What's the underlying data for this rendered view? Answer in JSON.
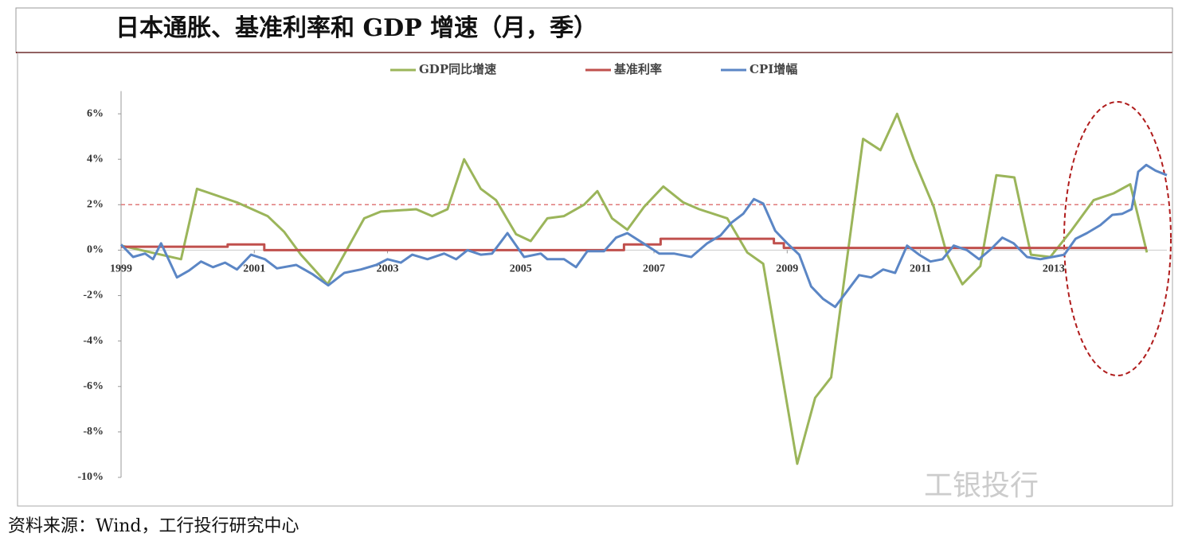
{
  "chart_data": {
    "type": "line",
    "title": "日本通胀、基准利率和 GDP 增速（月，季）",
    "xlim": [
      1999,
      2014.7
    ],
    "xticks": [
      1999,
      2001,
      2003,
      2005,
      2007,
      2009,
      2011,
      2013
    ],
    "ylim": [
      -10,
      7
    ],
    "yticks": [
      {
        "value": 6,
        "label": "6%"
      },
      {
        "value": 4,
        "label": "4%"
      },
      {
        "value": 2,
        "label": "2%"
      },
      {
        "value": 0,
        "label": "0%"
      },
      {
        "value": -2,
        "label": "-2%"
      },
      {
        "value": -4,
        "label": "-4%"
      },
      {
        "value": -6,
        "label": "-6%"
      },
      {
        "value": -8,
        "label": "-8%"
      },
      {
        "value": -10,
        "label": "-10%"
      }
    ],
    "reference_line": 2,
    "reference_color": "#e07a7a",
    "series": [
      {
        "name": "GDP同比增速",
        "color": "#9bb55a",
        "x": [
          1999.0,
          1999.9,
          2000.14,
          2000.74,
          2001.2,
          2001.45,
          2001.7,
          2002.1,
          2002.65,
          2002.9,
          2003.43,
          2003.67,
          2003.9,
          2004.15,
          2004.4,
          2004.63,
          2004.93,
          2005.15,
          2005.4,
          2005.65,
          2005.95,
          2006.15,
          2006.37,
          2006.6,
          2006.85,
          2007.14,
          2007.44,
          2007.68,
          2008.1,
          2008.4,
          2008.64,
          2009.15,
          2009.42,
          2009.66,
          2010.14,
          2010.4,
          2010.65,
          2010.9,
          2011.2,
          2011.4,
          2011.63,
          2011.9,
          2012.14,
          2012.41,
          2012.66,
          2012.95,
          2013.25,
          2013.6,
          2013.9,
          2014.15,
          2014.4
        ],
        "values": [
          0.2,
          -0.4,
          2.7,
          2.1,
          1.5,
          0.8,
          -0.2,
          -1.5,
          1.4,
          1.7,
          1.8,
          1.5,
          1.8,
          4.0,
          2.7,
          2.2,
          0.7,
          0.4,
          1.4,
          1.5,
          2.0,
          2.6,
          1.4,
          0.9,
          1.9,
          2.8,
          2.1,
          1.8,
          1.4,
          -0.1,
          -0.6,
          -9.4,
          -6.5,
          -5.6,
          4.9,
          4.4,
          6.0,
          4.0,
          1.9,
          -0.2,
          -1.5,
          -0.7,
          3.3,
          3.2,
          -0.2,
          -0.3,
          0.8,
          2.2,
          2.5,
          2.9,
          -0.1
        ]
      },
      {
        "name": "基准利率",
        "color": "#c0504d",
        "x": [
          1999.0,
          2000.6,
          2000.6,
          2001.15,
          2001.15,
          2006.55,
          2006.55,
          2007.1,
          2007.1,
          2008.8,
          2008.8,
          2008.95,
          2008.95,
          2014.4
        ],
        "values": [
          0.15,
          0.15,
          0.25,
          0.25,
          0,
          0,
          0.25,
          0.25,
          0.5,
          0.5,
          0.3,
          0.3,
          0.1,
          0.1
        ]
      },
      {
        "name": "CPI增幅",
        "color": "#5b86c5",
        "x": [
          1999.0,
          1999.18,
          1999.36,
          1999.48,
          1999.6,
          1999.84,
          2000.02,
          2000.2,
          2000.38,
          2000.56,
          2000.74,
          2000.95,
          2001.16,
          2001.34,
          2001.63,
          2001.87,
          2002.11,
          2002.35,
          2002.6,
          2002.83,
          2003.0,
          2003.2,
          2003.37,
          2003.6,
          2003.85,
          2004.03,
          2004.2,
          2004.4,
          2004.57,
          2004.8,
          2005.05,
          2005.3,
          2005.4,
          2005.65,
          2005.83,
          2006.0,
          2006.25,
          2006.43,
          2006.6,
          2006.84,
          2007.08,
          2007.3,
          2007.56,
          2007.8,
          2008.0,
          2008.16,
          2008.34,
          2008.5,
          2008.64,
          2008.82,
          2009.0,
          2009.18,
          2009.36,
          2009.54,
          2009.72,
          2009.9,
          2010.08,
          2010.26,
          2010.44,
          2010.62,
          2010.8,
          2010.98,
          2011.15,
          2011.33,
          2011.5,
          2011.7,
          2011.88,
          2012.06,
          2012.23,
          2012.4,
          2012.6,
          2012.8,
          2012.98,
          2013.16,
          2013.33,
          2013.5,
          2013.7,
          2013.88,
          2014.03,
          2014.17,
          2014.27,
          2014.39,
          2014.53,
          2014.7
        ],
        "values": [
          0.25,
          -0.3,
          -0.15,
          -0.4,
          0.3,
          -1.2,
          -0.9,
          -0.5,
          -0.75,
          -0.55,
          -0.85,
          -0.2,
          -0.4,
          -0.8,
          -0.65,
          -1.05,
          -1.55,
          -1.0,
          -0.85,
          -0.65,
          -0.4,
          -0.55,
          -0.2,
          -0.4,
          -0.15,
          -0.4,
          0.0,
          -0.2,
          -0.15,
          0.75,
          -0.3,
          -0.15,
          -0.4,
          -0.4,
          -0.75,
          -0.05,
          -0.05,
          0.55,
          0.75,
          0.3,
          -0.15,
          -0.15,
          -0.3,
          0.3,
          0.65,
          1.2,
          1.6,
          2.25,
          2.05,
          0.85,
          0.3,
          -0.2,
          -1.6,
          -2.15,
          -2.5,
          -1.8,
          -1.1,
          -1.2,
          -0.85,
          -1.0,
          0.2,
          -0.2,
          -0.5,
          -0.4,
          0.2,
          0,
          -0.4,
          0.05,
          0.55,
          0.3,
          -0.3,
          -0.4,
          -0.3,
          -0.2,
          0.5,
          0.75,
          1.1,
          1.55,
          1.6,
          1.8,
          3.45,
          3.75,
          3.5,
          3.3
        ]
      }
    ]
  },
  "source": "资料来源：Wind，工行投行研究中心",
  "watermark": "工银投行"
}
